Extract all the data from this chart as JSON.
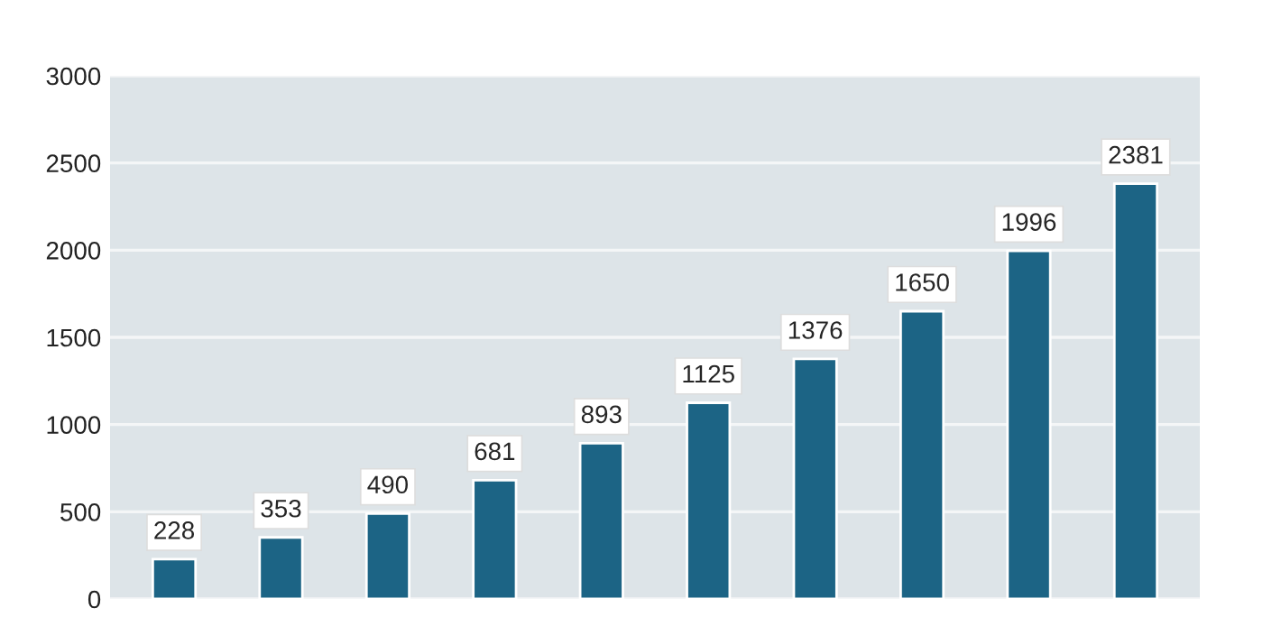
{
  "chart_data": {
    "type": "bar",
    "categories": [
      null,
      null,
      null,
      null,
      null,
      null,
      null,
      null,
      null,
      null
    ],
    "values": [
      228,
      353,
      490,
      681,
      893,
      1125,
      1376,
      1650,
      1996,
      2381
    ],
    "color": "#1c6485",
    "ylim": [
      0,
      3000
    ],
    "yticks": [
      0,
      500,
      1000,
      1500,
      2000,
      2500,
      3000
    ],
    "grid": "y",
    "data_labels": true
  }
}
